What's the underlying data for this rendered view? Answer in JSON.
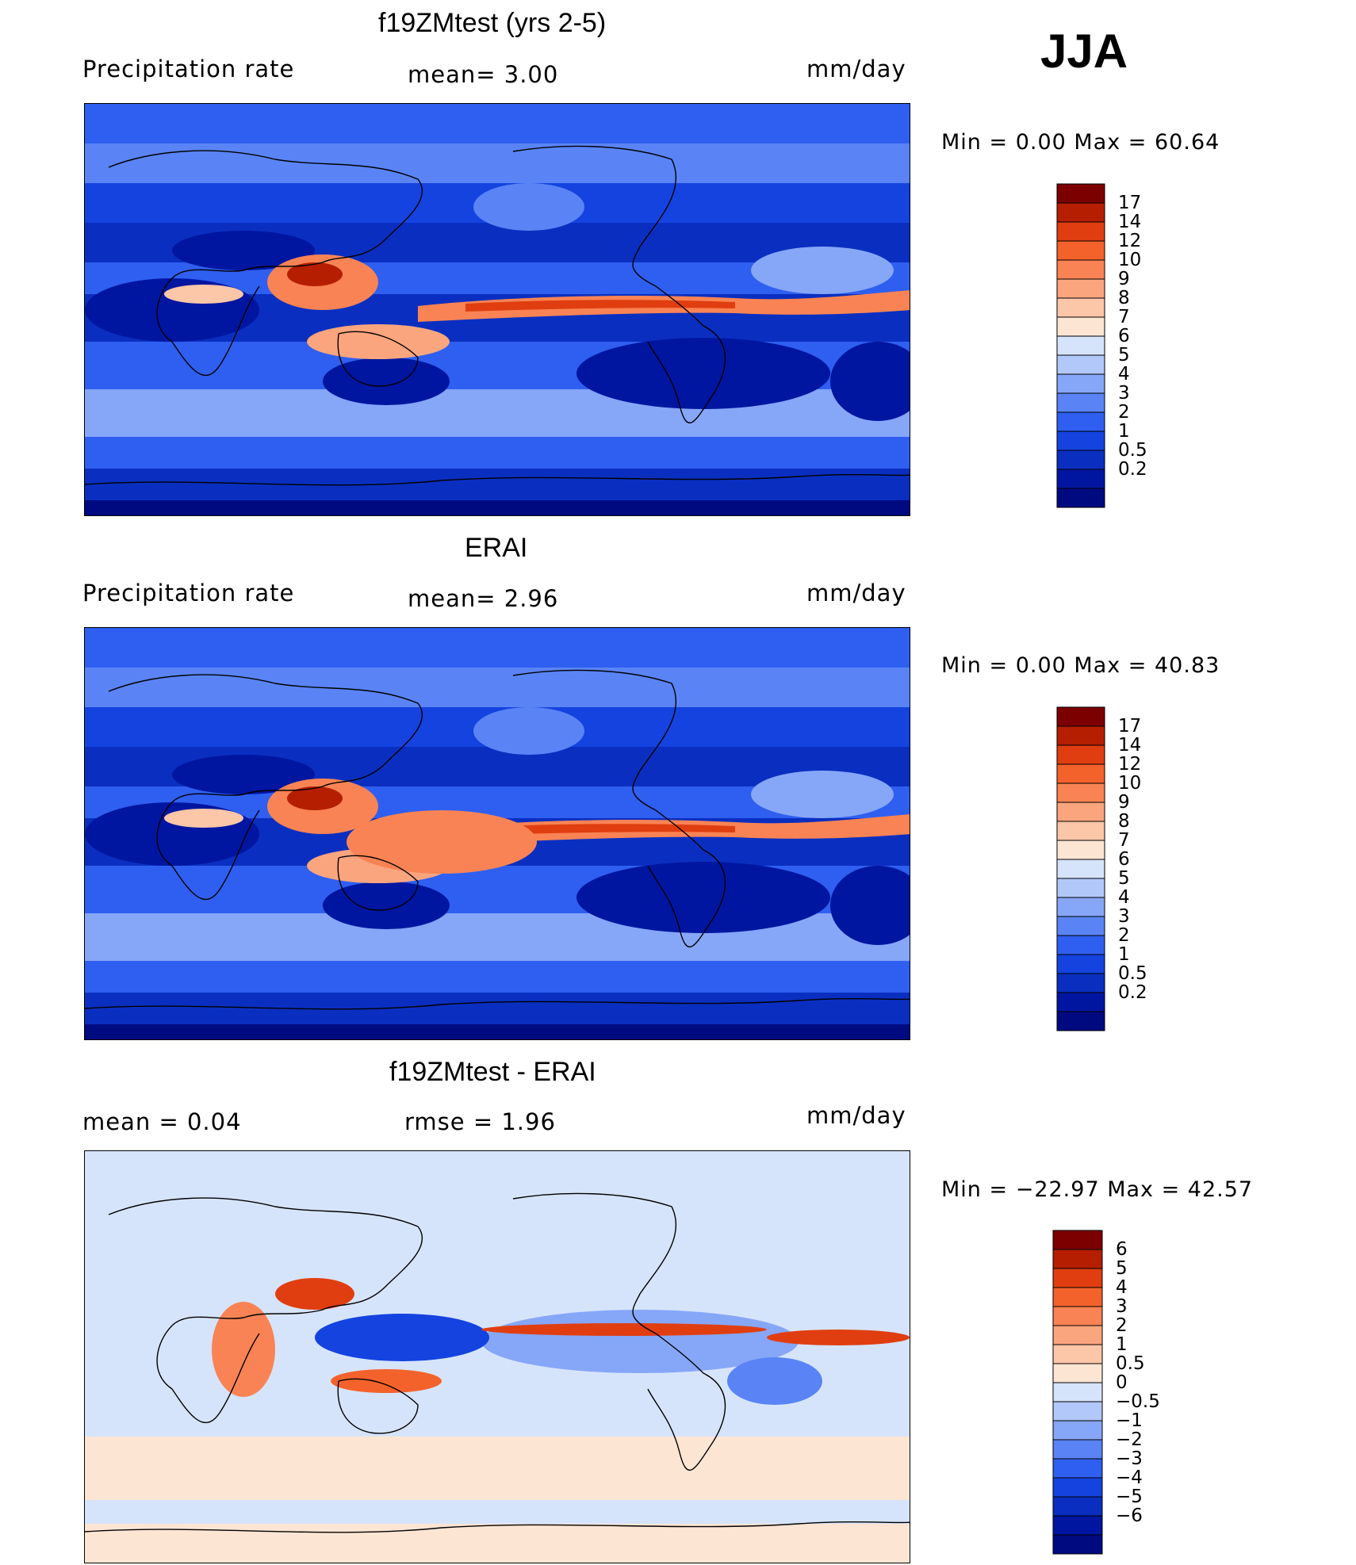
{
  "season": "JJA",
  "colors": {
    "precip": [
      "#000a80",
      "#0016a0",
      "#0a2fc0",
      "#1443e0",
      "#2f5ff0",
      "#5a84f5",
      "#86a6f8",
      "#b2c8fa",
      "#d6e4fb",
      "#fde5d4",
      "#fcc6a8",
      "#fba57e",
      "#f98354",
      "#f4622c",
      "#e03e10",
      "#b51f00",
      "#7d0000"
    ],
    "diff": [
      "#000a80",
      "#0016a0",
      "#0a2fc0",
      "#1443e0",
      "#2f5ff0",
      "#5a84f5",
      "#86a6f8",
      "#b2c8fa",
      "#d6e4fb",
      "#fde5d4",
      "#fcc6a8",
      "#fba57e",
      "#f98354",
      "#f4622c",
      "#e03e10",
      "#b51f00",
      "#7d0000"
    ]
  },
  "panels": [
    {
      "title": "f19ZMtest (yrs 2-5)",
      "left_label": "Precipitation  rate",
      "center_label": "mean=     3.00",
      "units": "mm/day",
      "minmax": "Min  =      0.00  Max  =     60.64"
    },
    {
      "title": "ERAI",
      "left_label": "Precipitation  rate",
      "center_label": "mean=     2.96",
      "units": "mm/day",
      "minmax": "Min  =      0.00  Max  =     40.83"
    },
    {
      "title": "f19ZMtest - ERAI",
      "left_label": "mean  =     0.04",
      "center_label": "rmse  =     1.96",
      "units": "mm/day",
      "minmax": "Min  = −22.97  Max  =     42.57"
    }
  ],
  "chart_data": [
    {
      "type": "heatmap",
      "title": "f19ZMtest (yrs 2-5)",
      "variable": "Precipitation  rate",
      "units": "mm/day",
      "mean": 3.0,
      "min": 0.0,
      "max": 60.64,
      "levels": [
        "17",
        "14",
        "12",
        "10",
        "9",
        "8",
        "7",
        "6",
        "5",
        "4",
        "3",
        "2",
        "1",
        "0.5",
        "0.2"
      ]
    },
    {
      "type": "heatmap",
      "title": "ERAI",
      "variable": "Precipitation  rate",
      "units": "mm/day",
      "mean": 2.96,
      "min": 0.0,
      "max": 40.83,
      "levels": [
        "17",
        "14",
        "12",
        "10",
        "9",
        "8",
        "7",
        "6",
        "5",
        "4",
        "3",
        "2",
        "1",
        "0.5",
        "0.2"
      ]
    },
    {
      "type": "heatmap",
      "title": "f19ZMtest - ERAI",
      "units": "mm/day",
      "mean": 0.04,
      "rmse": 1.96,
      "min": -22.97,
      "max": 42.57,
      "levels": [
        "6",
        "5",
        "4",
        "3",
        "2",
        "1",
        "0.5",
        "0",
        "−0.5",
        "−1",
        "−2",
        "−3",
        "−4",
        "−5",
        "−6"
      ]
    }
  ]
}
